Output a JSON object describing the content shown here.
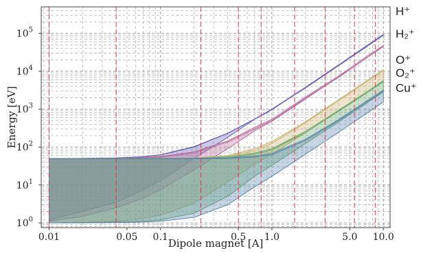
{
  "chart_data": {
    "type": "area",
    "xlabel": "Dipole magnet [A]",
    "ylabel": "Energy [eV]",
    "x_scale": "log",
    "y_scale": "log",
    "xlim": [
      0.0085,
      11.5
    ],
    "ylim": [
      0.75,
      500000
    ],
    "x_ticks": [
      {
        "value": 0.01,
        "label": "0.01"
      },
      {
        "value": 0.05,
        "label": "0.05"
      },
      {
        "value": 0.1,
        "label": "0.1"
      },
      {
        "value": 0.5,
        "label": "0.5"
      },
      {
        "value": 1.0,
        "label": "1.0"
      },
      {
        "value": 5.0,
        "label": "5.0"
      },
      {
        "value": 10.0,
        "label": "10.0"
      }
    ],
    "y_ticks": [
      {
        "value": 1,
        "mantissa": "10",
        "exp": "0"
      },
      {
        "value": 10,
        "mantissa": "10",
        "exp": "1"
      },
      {
        "value": 100,
        "mantissa": "10",
        "exp": "2"
      },
      {
        "value": 1000,
        "mantissa": "10",
        "exp": "3"
      },
      {
        "value": 10000,
        "mantissa": "10",
        "exp": "4"
      },
      {
        "value": 100000,
        "mantissa": "10",
        "exp": "5"
      }
    ],
    "grid": true,
    "vertical_markers": [
      0.01,
      0.04,
      0.23,
      0.5,
      0.8,
      1.6,
      3.0,
      5.5,
      8.5
    ],
    "x": [
      0.01,
      0.02,
      0.04,
      0.07,
      0.1,
      0.2,
      0.4,
      0.7,
      1.0,
      2.0,
      4.0,
      7.0,
      10.0
    ],
    "series": [
      {
        "name": "H⁺",
        "color": "#6b66b8",
        "upper": [
          50.0,
          50.5,
          52.0,
          56.0,
          63.0,
          103.0,
          233.0,
          550.0,
          1000.0,
          3800.0,
          15000.0,
          46000.0,
          94000.0
        ],
        "mid": [
          48.8,
          49.5,
          51.0,
          55.0,
          62.0,
          100.0,
          229.0,
          543.0,
          1000.0,
          3600.0,
          14300.0,
          43600.0,
          89000.0
        ],
        "lower": [
          1.2,
          2.0,
          3.5,
          7.5,
          13.0,
          50.0,
          180.0,
          540.0,
          960.0,
          3700.0,
          14300.0,
          43600.0,
          89000.0
        ]
      },
      {
        "name": "H₂⁺",
        "color": "#b86a9a",
        "upper": [
          50.0,
          50.2,
          51.0,
          53.0,
          56.0,
          75.0,
          145.0,
          330.0,
          540.0,
          2100.0,
          7500.0,
          24000.0,
          48000.0
        ],
        "mid": [
          49.0,
          49.5,
          50.0,
          52.0,
          54.0,
          70.0,
          135.0,
          300.0,
          500.0,
          1950.0,
          7000.0,
          22000.0,
          45000.0
        ],
        "lower": [
          1.1,
          1.5,
          2.5,
          4.5,
          7.5,
          25.0,
          90.0,
          270.0,
          480.0,
          1850.0,
          7200.0,
          21900.0,
          44600.0
        ]
      },
      {
        "name": "O⁺",
        "color": "#c9b36e",
        "upper": [
          50.0,
          50.0,
          50.0,
          50.5,
          51.0,
          52.0,
          60.0,
          90.0,
          140.0,
          470.0,
          1800.0,
          5500.0,
          11000.0
        ],
        "mid": [
          49.0,
          49.0,
          49.0,
          49.5,
          49.5,
          50.0,
          57.0,
          80.0,
          125.0,
          440.0,
          1700.0,
          5200.0,
          10500.0
        ],
        "lower": [
          1.0,
          1.05,
          1.1,
          1.3,
          1.6,
          3.3,
          12.0,
          35.0,
          65.0,
          240.0,
          920.0,
          2800.0,
          5700.0
        ]
      },
      {
        "name": "O₂⁺",
        "color": "#6aa86a",
        "upper": [
          50.0,
          50.0,
          50.0,
          50.0,
          50.5,
          51.0,
          55.0,
          70.0,
          90.0,
          260.0,
          950.0,
          2800.0,
          5600.0
        ],
        "mid": [
          49.0,
          49.0,
          49.0,
          49.0,
          49.0,
          49.5,
          52.0,
          65.0,
          85.0,
          240.0,
          900.0,
          2600.0,
          5300.0
        ],
        "lower": [
          1.0,
          1.02,
          1.05,
          1.1,
          1.2,
          1.8,
          5.0,
          17.0,
          33.0,
          125.0,
          470.0,
          1400.0,
          2850.0
        ]
      },
      {
        "name": "Cu⁺",
        "color": "#5a86b0",
        "upper": [
          50.0,
          50.0,
          50.0,
          50.0,
          50.0,
          50.5,
          52.0,
          58.0,
          68.0,
          160.0,
          540.0,
          1600.0,
          3200.0
        ],
        "mid": [
          49.0,
          49.0,
          49.0,
          49.0,
          49.0,
          49.0,
          50.0,
          55.0,
          63.0,
          150.0,
          510.0,
          1500.0,
          3000.0
        ],
        "lower": [
          1.0,
          1.0,
          1.02,
          1.05,
          1.1,
          1.4,
          3.0,
          9.0,
          17.0,
          65.0,
          250.0,
          760.0,
          1550.0
        ]
      }
    ]
  }
}
